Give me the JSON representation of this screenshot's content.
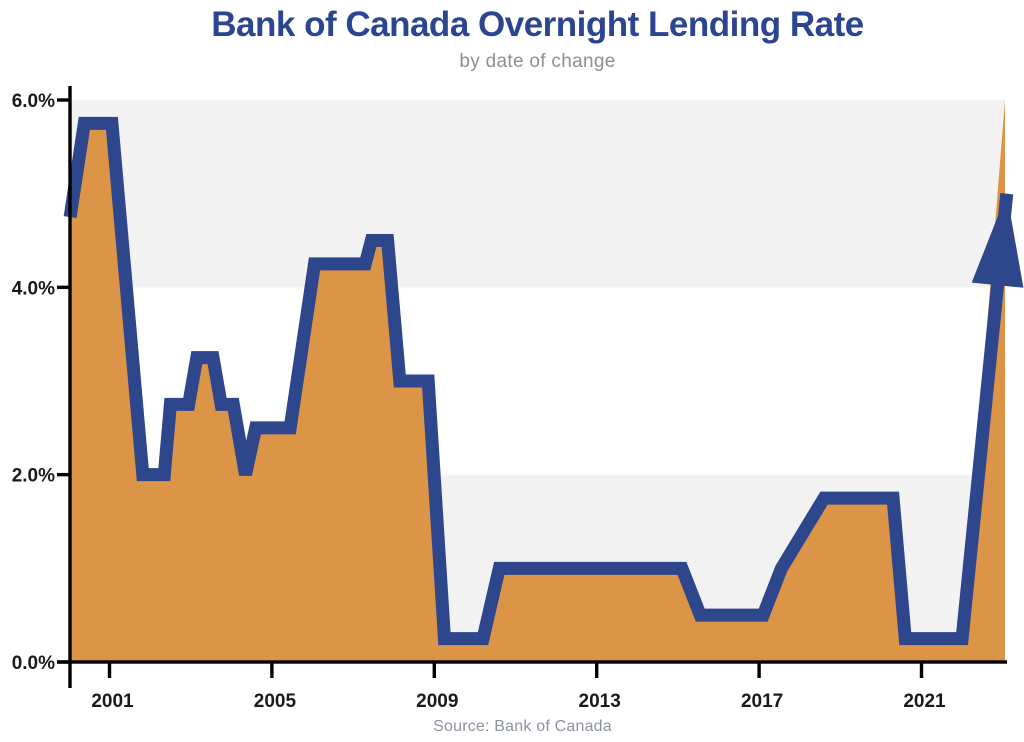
{
  "header": {
    "title": "Bank of Canada Overnight Lending Rate",
    "subtitle": "by date of change"
  },
  "footer": {
    "source": "Source: Bank of Canada"
  },
  "chart_data": {
    "type": "area",
    "title": "Bank of Canada Overnight Lending Rate",
    "subtitle": "by date of change",
    "source": "Source: Bank of Canada",
    "xlabel": "",
    "ylabel": "",
    "x_axis": {
      "range": [
        2000.03,
        2023.06
      ],
      "ticks": [
        2001,
        2005,
        2009,
        2013,
        2017,
        2021
      ],
      "tick_labels": [
        "2001",
        "2005",
        "2009",
        "2013",
        "2017",
        "2021"
      ]
    },
    "y_axis": {
      "range": [
        0,
        6
      ],
      "ticks": [
        0,
        2,
        4,
        6
      ],
      "tick_labels": [
        "0.0%",
        "2.0%",
        "4.0%",
        "6.0%"
      ]
    },
    "grid": "off",
    "background_bands": [
      {
        "from": 4,
        "to": 6
      },
      {
        "from": 0,
        "to": 2
      }
    ],
    "legend": "none",
    "series": [
      {
        "name": "overnight-lending-rate",
        "unit": "percent",
        "points": [
          [
            2000.03,
            4.75
          ],
          [
            2000.38,
            5.75
          ],
          [
            2001.06,
            5.75
          ],
          [
            2001.82,
            2.0
          ],
          [
            2002.35,
            2.0
          ],
          [
            2002.5,
            2.75
          ],
          [
            2002.95,
            2.75
          ],
          [
            2003.15,
            3.25
          ],
          [
            2003.55,
            3.25
          ],
          [
            2003.75,
            2.75
          ],
          [
            2004.05,
            2.75
          ],
          [
            2004.35,
            2.0
          ],
          [
            2004.6,
            2.5
          ],
          [
            2005.45,
            2.5
          ],
          [
            2006.05,
            4.25
          ],
          [
            2007.3,
            4.25
          ],
          [
            2007.45,
            4.5
          ],
          [
            2007.85,
            4.5
          ],
          [
            2008.15,
            3.0
          ],
          [
            2008.85,
            3.0
          ],
          [
            2009.25,
            0.25
          ],
          [
            2010.2,
            0.25
          ],
          [
            2010.6,
            1.0
          ],
          [
            2015.1,
            1.0
          ],
          [
            2015.55,
            0.5
          ],
          [
            2017.1,
            0.5
          ],
          [
            2017.55,
            1.0
          ],
          [
            2018.6,
            1.75
          ],
          [
            2020.3,
            1.75
          ],
          [
            2020.6,
            0.25
          ],
          [
            2022.0,
            0.25
          ],
          [
            2023.1,
            5.0
          ]
        ]
      }
    ],
    "annotations": {
      "trend_arrow": {
        "description": "upward arrow at end of series",
        "tip_point": [
          2023.1,
          5.0
        ]
      }
    },
    "colors": {
      "line": "#2D468C",
      "fill": "#DC9447",
      "band": "#F2F2F3",
      "title": "#2B4590",
      "subtitle": "#8D8E98",
      "source": "#8C939F",
      "axis": "#000000",
      "tick_label": "#1A1A1A"
    }
  }
}
